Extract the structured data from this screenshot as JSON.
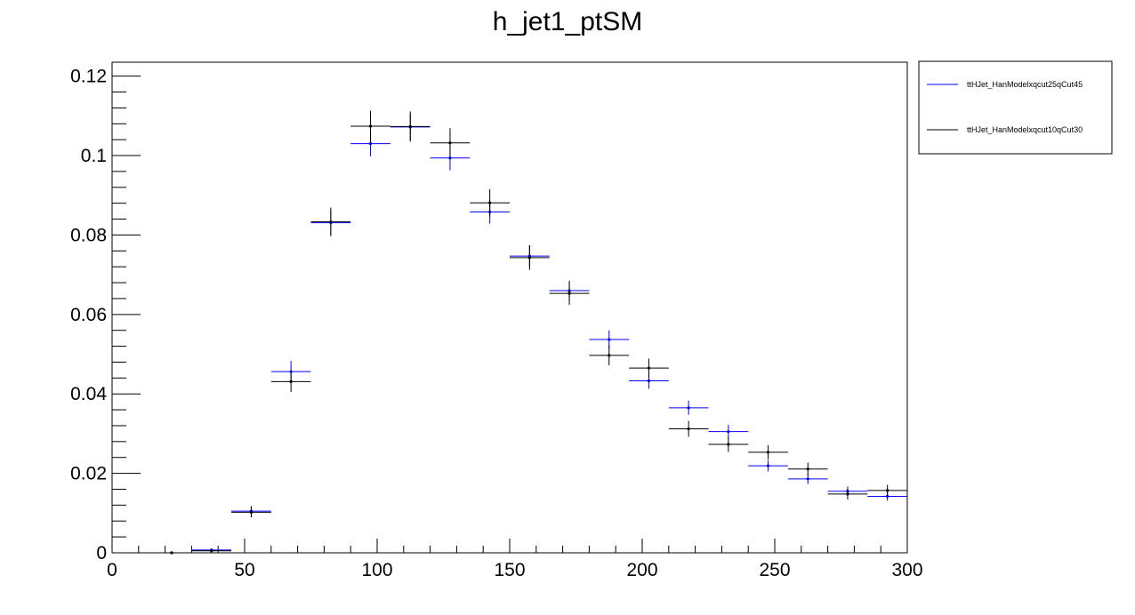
{
  "chart_data": {
    "type": "scatter",
    "title": "h_jet1_ptSM",
    "xlabel": "",
    "ylabel": "",
    "xlim": [
      0,
      300
    ],
    "ylim": [
      0,
      0.1235
    ],
    "x_ticks": [
      0,
      50,
      100,
      150,
      200,
      250,
      300
    ],
    "y_ticks": [
      0,
      0.02,
      0.04,
      0.06,
      0.08,
      0.1,
      0.12
    ],
    "x_tick_labels": [
      "0",
      "50",
      "100",
      "150",
      "200",
      "250",
      "300"
    ],
    "y_tick_labels": [
      "0",
      "0.02",
      "0.04",
      "0.06",
      "0.08",
      "0.1",
      "0.12"
    ],
    "grid": false,
    "legend_position": "outside-top-right",
    "bin_width": 15,
    "x": [
      22.5,
      37.5,
      52.5,
      67.5,
      82.5,
      97.5,
      112.5,
      127.5,
      142.5,
      157.5,
      172.5,
      187.5,
      202.5,
      217.5,
      232.5,
      247.5,
      262.5,
      277.5,
      292.5
    ],
    "series": [
      {
        "name": "ttHJet_HanModelxqcut25qCut45",
        "color": "#0000ff",
        "values": [
          0.0,
          0.0007,
          0.0105,
          0.0456,
          0.0831,
          0.103,
          0.1072,
          0.0994,
          0.0858,
          0.0747,
          0.066,
          0.0537,
          0.0433,
          0.0365,
          0.0305,
          0.0219,
          0.0186,
          0.0155,
          0.0142
        ],
        "errors": [
          0.0002,
          0.0004,
          0.0013,
          0.0027,
          0.0032,
          0.0032,
          0.0033,
          0.0031,
          0.0029,
          0.0027,
          0.0025,
          0.0023,
          0.002,
          0.0018,
          0.0017,
          0.0014,
          0.0013,
          0.0012,
          0.0011
        ]
      },
      {
        "name": "ttHJet_HanModelxqcut10qCut30",
        "color": "#000000",
        "values": [
          0.0,
          0.0005,
          0.0102,
          0.0431,
          0.0833,
          0.1074,
          0.1073,
          0.1032,
          0.0881,
          0.0743,
          0.0653,
          0.0497,
          0.0465,
          0.0312,
          0.0273,
          0.0253,
          0.0211,
          0.0148,
          0.0157
        ],
        "errors": [
          0.0002,
          0.0004,
          0.0013,
          0.0026,
          0.0036,
          0.0039,
          0.0038,
          0.0037,
          0.0034,
          0.0031,
          0.0029,
          0.0025,
          0.0024,
          0.002,
          0.0019,
          0.0018,
          0.0016,
          0.0014,
          0.0014
        ]
      }
    ]
  }
}
